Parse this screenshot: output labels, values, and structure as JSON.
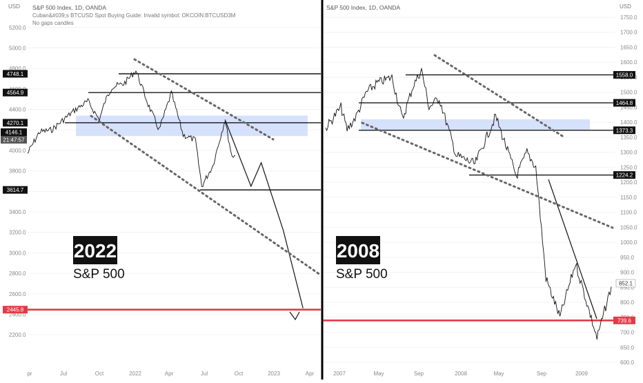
{
  "left_panel": {
    "header_title": "S&P 500 Index, 1D, OANDA",
    "header_sub1": "Cuban&#039;s BTCUSD Spot Buying Guide: Invalid symbol: OKCOIN:BTCUSD3M",
    "header_sub2": "No gaps candles",
    "currency": "USD",
    "big_label": "2022",
    "sub_label": "S&P 500",
    "price_badge": "4146.1",
    "time_badge": "21:47:57"
  },
  "right_panel": {
    "header_title": "S&P 500 Index, 1D, OANDA",
    "currency": "USD",
    "big_label": "2008",
    "sub_label": "S&P 500",
    "last_price": "852.1"
  },
  "colors": {
    "red_line": "#e63946",
    "blue_zone": "#cfdcfb",
    "badge_bg": "#111111",
    "divider": "#000000"
  },
  "chart_data": [
    {
      "type": "line",
      "title": "S&P 500 Index, 1D, OANDA",
      "big_label": "2022",
      "x_ticks": [
        "pr",
        "Jul",
        "Oct",
        "2022",
        "Apr",
        "Jul",
        "Oct",
        "2023",
        "Apr"
      ],
      "y_ticks": [
        5200,
        5000,
        4800,
        4600,
        4400,
        4200,
        4000,
        3800,
        3600,
        3400,
        3200,
        3000,
        2800,
        2600,
        2400,
        2200
      ],
      "ylim": [
        2080,
        5300
      ],
      "levels": [
        4748.1,
        4564.9,
        4270.1,
        3614.7,
        2445.8
      ],
      "last_price": 4146.1,
      "series": [
        {
          "values": [
            [
              "2021-04-01",
              3970
            ],
            [
              "2021-05-01",
              4180
            ],
            [
              "2021-06-01",
              4200
            ],
            [
              "2021-07-01",
              4300
            ],
            [
              "2021-08-01",
              4400
            ],
            [
              "2021-09-01",
              4480
            ],
            [
              "2021-09-30",
              4300
            ],
            [
              "2021-10-15",
              4480
            ],
            [
              "2021-11-01",
              4620
            ],
            [
              "2021-12-01",
              4650
            ],
            [
              "2022-01-01",
              4780
            ],
            [
              "2022-02-01",
              4450
            ],
            [
              "2022-03-01",
              4200
            ],
            [
              "2022-04-01",
              4560
            ],
            [
              "2022-05-01",
              4150
            ],
            [
              "2022-06-01",
              4100
            ],
            [
              "2022-06-17",
              3650
            ],
            [
              "2022-07-15",
              3850
            ],
            [
              "2022-08-15",
              4300
            ],
            [
              "2022-09-01",
              3950
            ],
            [
              "2022-09-10",
              3950
            ]
          ]
        }
      ],
      "projection": [
        [
          "2022-08-15",
          4300
        ],
        [
          "2022-10-20",
          3650
        ],
        [
          "2022-11-15",
          3880
        ],
        [
          "2023-01-10",
          3220
        ],
        [
          "2023-03-01",
          2460
        ]
      ],
      "zone": [
        4140,
        4340
      ]
    },
    {
      "type": "line",
      "title": "S&P 500 Index, 1D, OANDA",
      "big_label": "2008",
      "x_ticks": [
        "2007",
        "May",
        "Sep",
        "2008",
        "May",
        "Sep",
        "2009"
      ],
      "y_ticks": [
        1750,
        1700,
        1650,
        1600,
        1550,
        1500,
        1450,
        1400,
        1350,
        1300,
        1250,
        1200,
        1150,
        1100,
        1050,
        1000,
        950,
        900,
        850,
        800,
        750,
        700,
        650,
        600
      ],
      "ylim": [
        580,
        1790
      ],
      "levels": [
        1558.0,
        1464.8,
        1373.3,
        1224.2,
        739.6
      ],
      "last_price": 852.1,
      "series": [
        {
          "values": [
            [
              "2007-01-01",
              1380
            ],
            [
              "2007-02-15",
              1450
            ],
            [
              "2007-03-05",
              1375
            ],
            [
              "2007-04-01",
              1420
            ],
            [
              "2007-05-01",
              1500
            ],
            [
              "2007-06-01",
              1530
            ],
            [
              "2007-07-15",
              1550
            ],
            [
              "2007-08-15",
              1410
            ],
            [
              "2007-09-15",
              1520
            ],
            [
              "2007-10-10",
              1575
            ],
            [
              "2007-11-01",
              1450
            ],
            [
              "2007-12-01",
              1480
            ],
            [
              "2008-01-20",
              1290
            ],
            [
              "2008-03-15",
              1260
            ],
            [
              "2008-05-15",
              1420
            ],
            [
              "2008-07-15",
              1220
            ],
            [
              "2008-08-15",
              1300
            ],
            [
              "2008-09-10",
              1250
            ],
            [
              "2008-10-10",
              880
            ],
            [
              "2008-11-20",
              750
            ],
            [
              "2009-01-05",
              930
            ],
            [
              "2009-03-09",
              680
            ],
            [
              "2009-04-20",
              852
            ]
          ]
        }
      ],
      "zone": [
        1375,
        1410
      ]
    }
  ]
}
